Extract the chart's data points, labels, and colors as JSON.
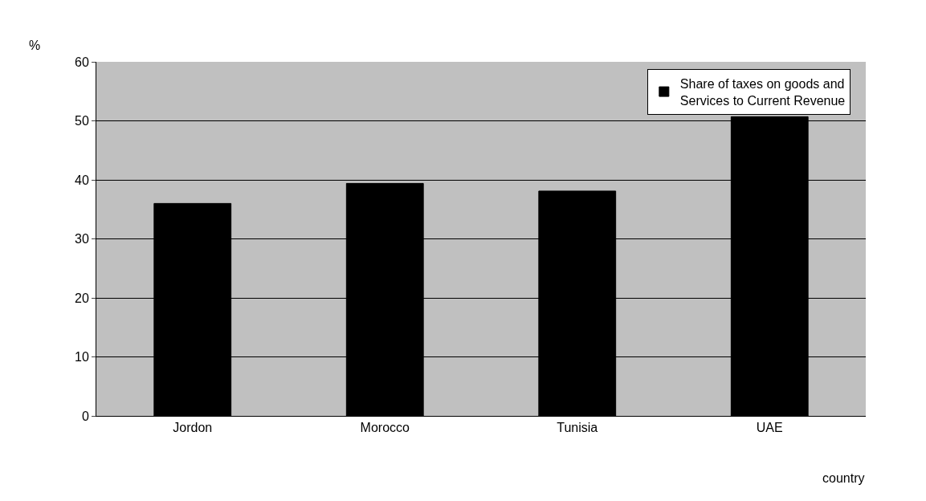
{
  "chart_data": {
    "type": "bar",
    "xlabel": "country",
    "ylabel": "%",
    "categories": [
      "Jordon",
      "Morocco",
      "Tunisia",
      "UAE"
    ],
    "series": [
      {
        "name": "Share of taxes on goods and Services to Current Revenue",
        "color": "#000000",
        "values": [
          36.0,
          39.4,
          38.1,
          50.7
        ]
      }
    ],
    "ylim": [
      0,
      60
    ],
    "yticks": [
      0,
      10,
      20,
      30,
      40,
      50,
      60
    ],
    "grid": "y",
    "legend": "top right"
  }
}
